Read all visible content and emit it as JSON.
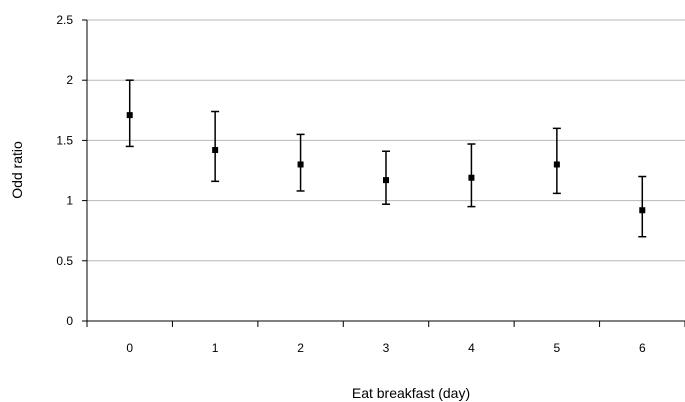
{
  "chart_data": {
    "type": "scatter",
    "title": "",
    "xlabel": "Eat breakfast (day)",
    "ylabel": "Odd ratio",
    "categories": [
      "0",
      "1",
      "2",
      "3",
      "4",
      "5",
      "6"
    ],
    "values": [
      1.71,
      1.42,
      1.3,
      1.17,
      1.19,
      1.3,
      0.92
    ],
    "error_low": [
      1.45,
      1.16,
      1.08,
      0.97,
      0.95,
      1.06,
      0.7
    ],
    "error_high": [
      2.0,
      1.74,
      1.55,
      1.41,
      1.47,
      1.6,
      1.2
    ],
    "ylim": [
      0,
      2.5
    ],
    "yticks": [
      "0",
      "0.5",
      "1",
      "1.5",
      "2",
      "2.5"
    ],
    "grid": true,
    "legend": "none"
  }
}
